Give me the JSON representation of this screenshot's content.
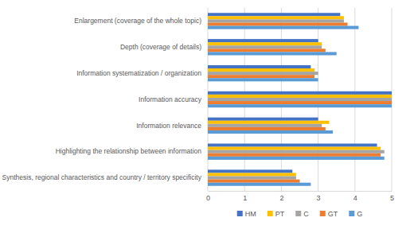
{
  "chart_data": {
    "type": "bar",
    "orientation": "horizontal",
    "categories": [
      "Enlargement (coverage of the whole topic)",
      "Depth (coverage of details)",
      "Information systematization / organization",
      "Information accuracy",
      "Information relevance",
      "Highlighting the relationship between information",
      "Synthesis, regional characteristics and country / territory specificity"
    ],
    "series": [
      {
        "name": "HM",
        "color": "#4472c4",
        "values": [
          3.6,
          3.0,
          2.8,
          5,
          3.0,
          4.6,
          2.3
        ]
      },
      {
        "name": "PT",
        "color": "#ffc000",
        "values": [
          3.7,
          3.1,
          2.9,
          5,
          3.3,
          4.7,
          2.4
        ]
      },
      {
        "name": "C",
        "color": "#a5a5a5",
        "values": [
          3.7,
          3.1,
          3.0,
          5,
          3.1,
          4.8,
          2.4
        ]
      },
      {
        "name": "GT",
        "color": "#ed7d31",
        "values": [
          3.8,
          3.2,
          2.9,
          5,
          3.2,
          4.7,
          2.5
        ]
      },
      {
        "name": "G",
        "color": "#5b9bd5",
        "values": [
          4.1,
          3.5,
          3.0,
          5,
          3.4,
          4.8,
          2.8
        ]
      }
    ],
    "xlim": [
      0,
      5
    ],
    "xticks": [
      0,
      1,
      2,
      3,
      4,
      5
    ],
    "grid": true,
    "legend": "bottom"
  }
}
